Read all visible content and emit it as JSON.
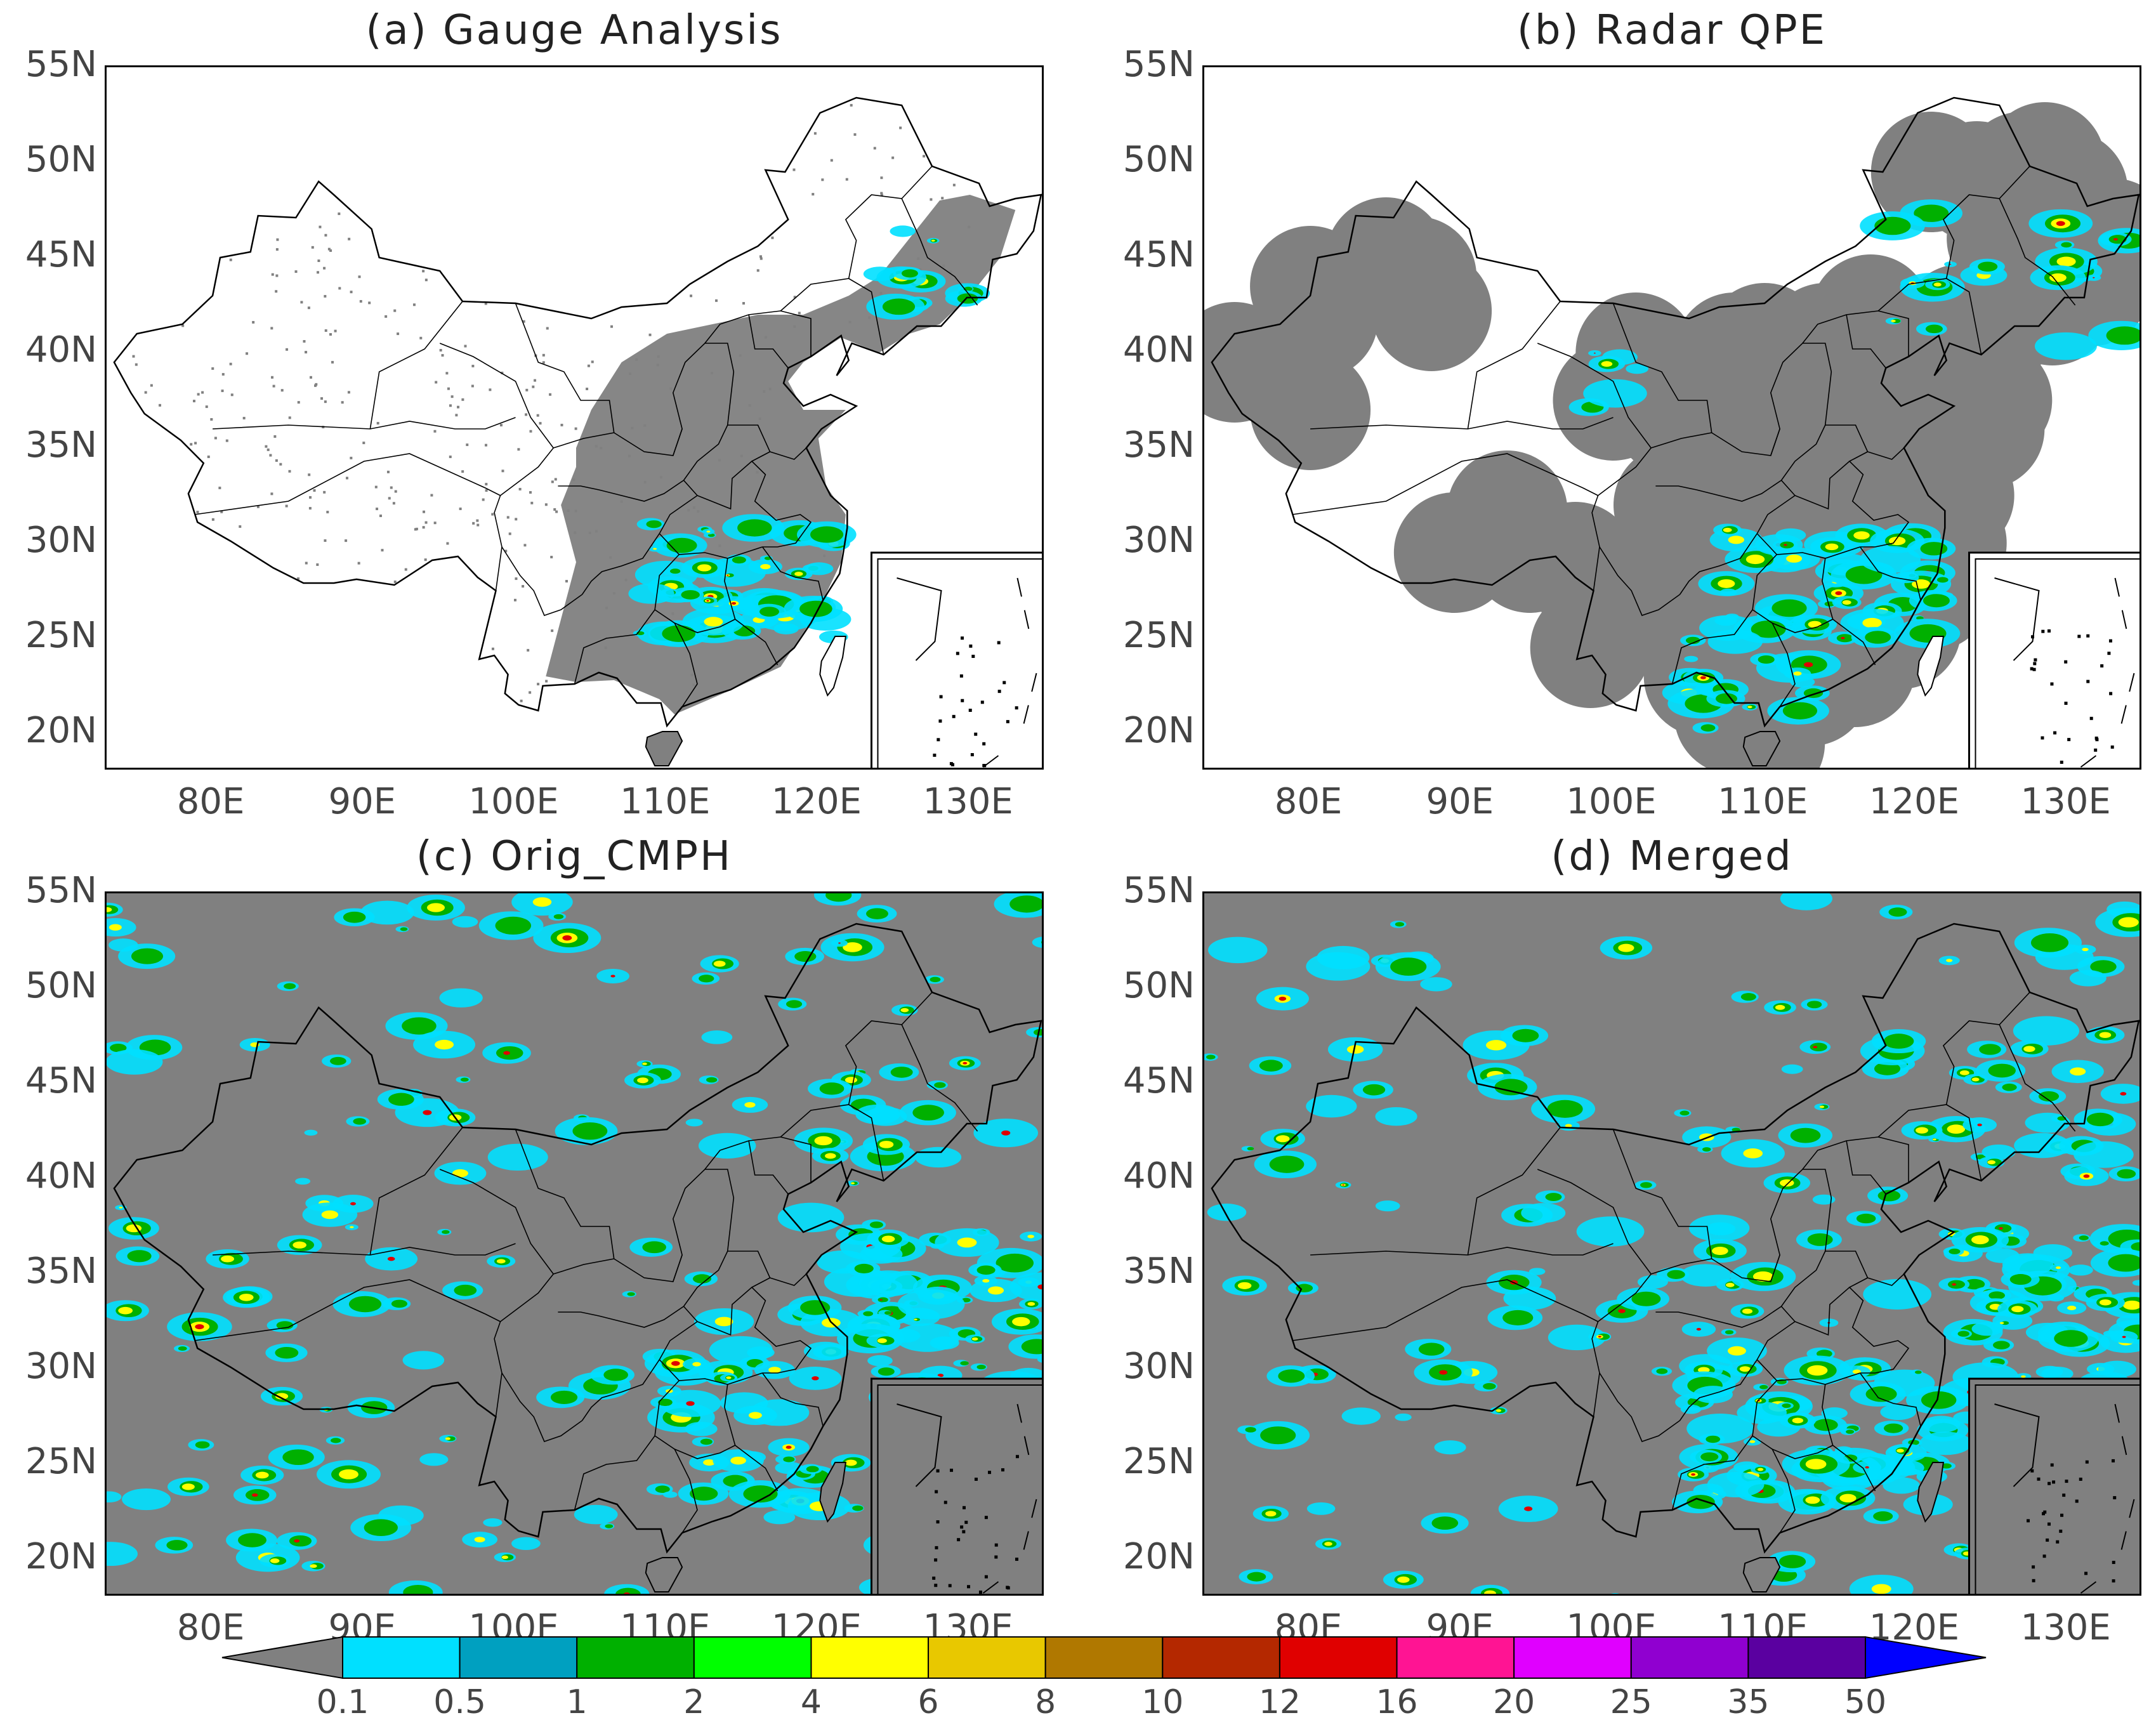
{
  "panels": [
    {
      "id": "a",
      "title": "(a) Gauge Analysis",
      "background": "white"
    },
    {
      "id": "b",
      "title": "(b) Radar QPE",
      "background": "white"
    },
    {
      "id": "c",
      "title": "(c) Orig_CMPH",
      "background": "gray"
    },
    {
      "id": "d",
      "title": "(d) Merged",
      "background": "gray"
    }
  ],
  "lat_labels": [
    "55N",
    "50N",
    "45N",
    "40N",
    "35N",
    "30N",
    "25N",
    "20N"
  ],
  "lon_labels": [
    "80E",
    "90E",
    "100E",
    "110E",
    "120E",
    "130E"
  ],
  "colorbar": {
    "levels": [
      "0.1",
      "0.5",
      "1",
      "2",
      "4",
      "6",
      "8",
      "10",
      "12",
      "16",
      "20",
      "25",
      "35",
      "50"
    ],
    "colors": [
      "#808080",
      "#00e0ff",
      "#00a0c0",
      "#00b000",
      "#00ff00",
      "#ffff00",
      "#e8c800",
      "#b07800",
      "#b42800",
      "#e00000",
      "#ff1493",
      "#e000ff",
      "#9000d0",
      "#5a00a0",
      "#0000ff"
    ]
  }
}
